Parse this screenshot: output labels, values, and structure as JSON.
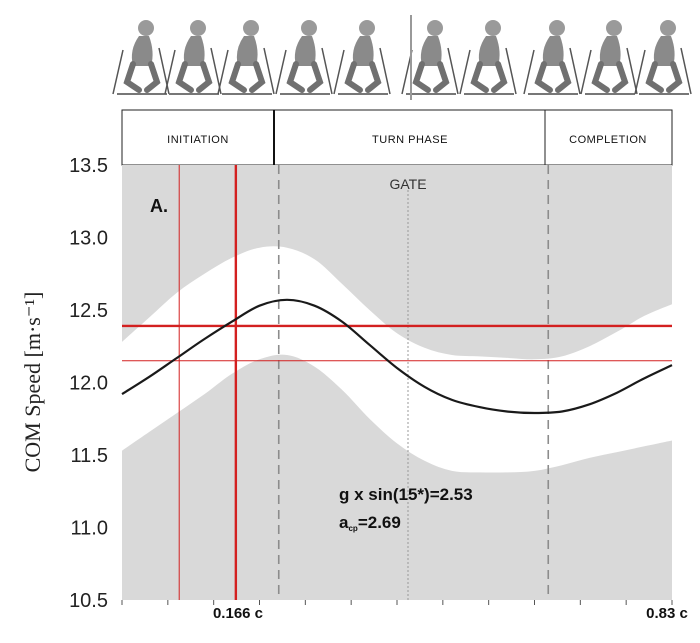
{
  "chart_data": {
    "type": "line",
    "panel_label": "A.",
    "ylabel": "COM Speed [m·s⁻¹]",
    "ylim": [
      10.5,
      13.5
    ],
    "yticks": [
      "13.5",
      "13.0",
      "12.5",
      "12.0",
      "11.5",
      "11.0",
      "10.5"
    ],
    "x_markers": [
      "0.166 c",
      "0.83 c"
    ],
    "phases": [
      "INITIATION",
      "TURN PHASE",
      "COMPLETION"
    ],
    "gate_label": "GATE",
    "annotations": [
      "g x sin(15*)=2.53",
      "=2.69"
    ],
    "annotation_acp_symbol": "a",
    "annotation_acp_sub": "cp",
    "series": [
      {
        "x": [
          0.0,
          0.05,
          0.1,
          0.15,
          0.2,
          0.25,
          0.3,
          0.35,
          0.4,
          0.45,
          0.5,
          0.55,
          0.6,
          0.65,
          0.7,
          0.75,
          0.8,
          0.85,
          0.9,
          0.95,
          1.0
        ],
        "y": [
          11.92,
          12.04,
          12.17,
          12.3,
          12.42,
          12.53,
          12.57,
          12.53,
          12.42,
          12.26,
          12.1,
          11.97,
          11.88,
          11.83,
          11.8,
          11.79,
          11.8,
          11.85,
          11.93,
          12.03,
          12.12
        ]
      }
    ],
    "band_upper": [
      12.28,
      12.45,
      12.62,
      12.75,
      12.86,
      12.93,
      12.93,
      12.85,
      12.68,
      12.5,
      12.34,
      12.24,
      12.19,
      12.18,
      12.17,
      12.16,
      12.18,
      12.25,
      12.35,
      12.46,
      12.54
    ],
    "band_lower": [
      11.53,
      11.66,
      11.79,
      11.92,
      12.06,
      12.16,
      12.19,
      12.11,
      11.95,
      11.75,
      11.58,
      11.46,
      11.39,
      11.38,
      11.38,
      11.39,
      11.43,
      11.48,
      11.52,
      11.56,
      11.6
    ],
    "reference_lines_y": [
      12.39,
      12.15
    ],
    "reference_lines_x": [
      0.104,
      0.207
    ],
    "dashed_lines_x": [
      0.285,
      0.775
    ],
    "dotted_line_x": 0.52
  },
  "colors": {
    "background": "#d9d9d9",
    "band": "#ffffff",
    "curve": "#1a1a1a",
    "reference": "#d32020",
    "dashed": "#8c8c8c"
  }
}
